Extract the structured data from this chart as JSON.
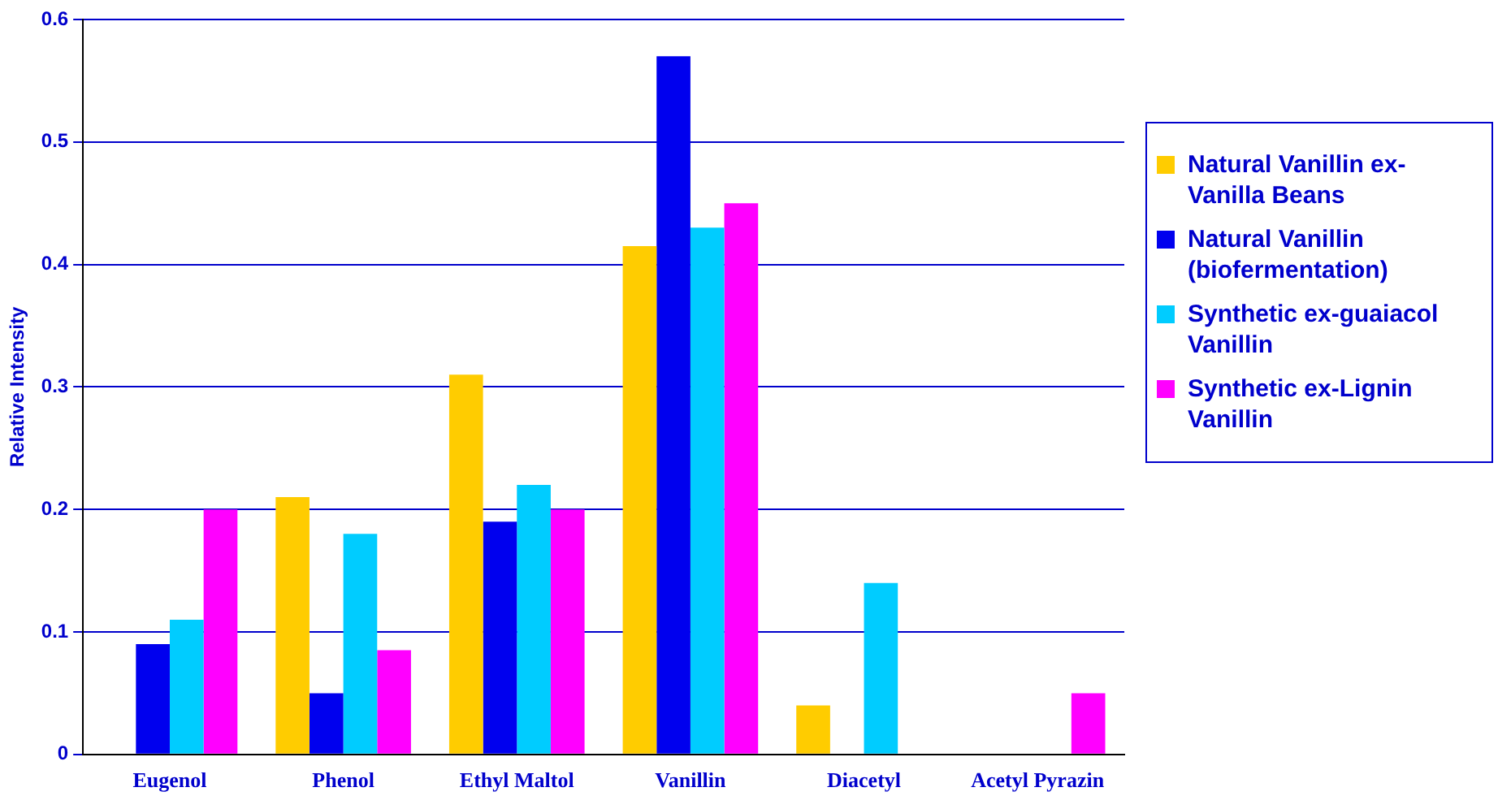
{
  "chart_data": {
    "type": "bar",
    "ylabel": "Relative Intensity",
    "categories": [
      "Eugenol",
      "Phenol",
      "Ethyl Maltol",
      "Vanillin",
      "Diacetyl",
      "Acetyl Pyrazin"
    ],
    "series": [
      {
        "name": "Natural Vanillin ex-Vanilla Beans",
        "color": "#ffcc00",
        "values": [
          0,
          0.21,
          0.31,
          0.415,
          0.04,
          0
        ]
      },
      {
        "name": "Natural Vanillin (biofermentation)",
        "color": "#0000ee",
        "values": [
          0.09,
          0.05,
          0.19,
          0.57,
          0,
          0
        ]
      },
      {
        "name": "Synthetic ex-guaiacol Vanillin",
        "color": "#00ccff",
        "values": [
          0.11,
          0.18,
          0.22,
          0.43,
          0.14,
          0
        ]
      },
      {
        "name": "Synthetic ex-Lignin Vanillin",
        "color": "#ff00ff",
        "values": [
          0.2,
          0.085,
          0.2,
          0.45,
          0,
          0.05
        ]
      }
    ],
    "ylim": [
      0,
      0.6
    ],
    "yticks": [
      0,
      0.1,
      0.2,
      0.3,
      0.4,
      0.5,
      0.6
    ],
    "grid": "y",
    "legend": "right"
  }
}
